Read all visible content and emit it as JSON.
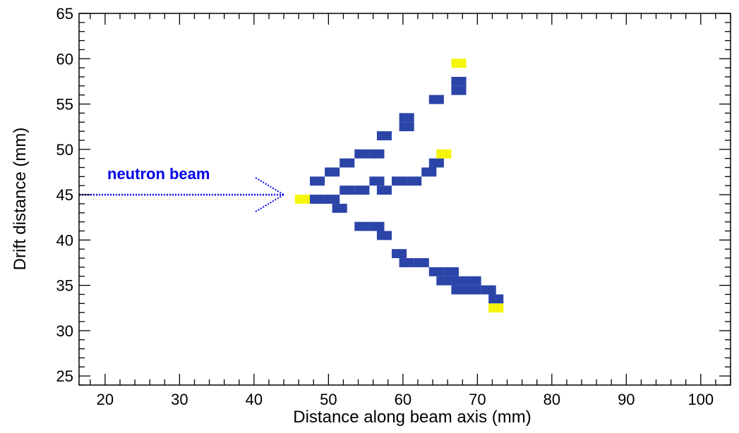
{
  "chart_data": {
    "type": "heatmap",
    "xlabel": "Distance along beam axis (mm)",
    "ylabel": "Drift distance (mm)",
    "xlim": [
      16.5,
      104
    ],
    "ylim": [
      24,
      65
    ],
    "xticks": [
      20,
      30,
      40,
      50,
      60,
      70,
      80,
      90,
      100
    ],
    "yticks": [
      25,
      30,
      35,
      40,
      45,
      50,
      55,
      60,
      65
    ],
    "x_minor_step": 2,
    "y_minor_step": 1,
    "cell_size": [
      2,
      1
    ],
    "colors": {
      "track": "#2b44a8",
      "endpoint": "#f5f50a",
      "annotation": "#0000e6"
    },
    "annotation": {
      "text": "neutron beam",
      "arrow_from": [
        16.5,
        45
      ],
      "arrow_to": [
        44,
        45
      ]
    },
    "endpoint_cells": [
      [
        46.5,
        44.5
      ],
      [
        67.5,
        59.5
      ],
      [
        65.5,
        49.5
      ],
      [
        72.5,
        32.5
      ]
    ],
    "track_cells": [
      [
        48.5,
        44.5
      ],
      [
        50.5,
        44.5
      ],
      [
        48.5,
        46.5
      ],
      [
        50.5,
        47.5
      ],
      [
        52.5,
        48.5
      ],
      [
        54.5,
        49.5
      ],
      [
        56.5,
        49.5
      ],
      [
        57.5,
        51.5
      ],
      [
        60.5,
        52.5
      ],
      [
        60.5,
        53.5
      ],
      [
        64.5,
        55.5
      ],
      [
        67.5,
        56.5
      ],
      [
        67.5,
        57.5
      ],
      [
        52.5,
        45.5
      ],
      [
        54.5,
        45.5
      ],
      [
        56.5,
        46.5
      ],
      [
        57.5,
        45.5
      ],
      [
        59.5,
        46.5
      ],
      [
        61.5,
        46.5
      ],
      [
        63.5,
        47.5
      ],
      [
        64.5,
        48.5
      ],
      [
        51.5,
        43.5
      ],
      [
        54.5,
        41.5
      ],
      [
        56.5,
        41.5
      ],
      [
        57.5,
        40.5
      ],
      [
        59.5,
        38.5
      ],
      [
        60.5,
        37.5
      ],
      [
        62.5,
        37.5
      ],
      [
        64.5,
        36.5
      ],
      [
        66.5,
        36.5
      ],
      [
        65.5,
        35.5
      ],
      [
        67.5,
        35.5
      ],
      [
        69.5,
        35.5
      ],
      [
        67.5,
        34.5
      ],
      [
        69.5,
        34.5
      ],
      [
        71.5,
        34.5
      ],
      [
        72.5,
        33.5
      ]
    ]
  }
}
